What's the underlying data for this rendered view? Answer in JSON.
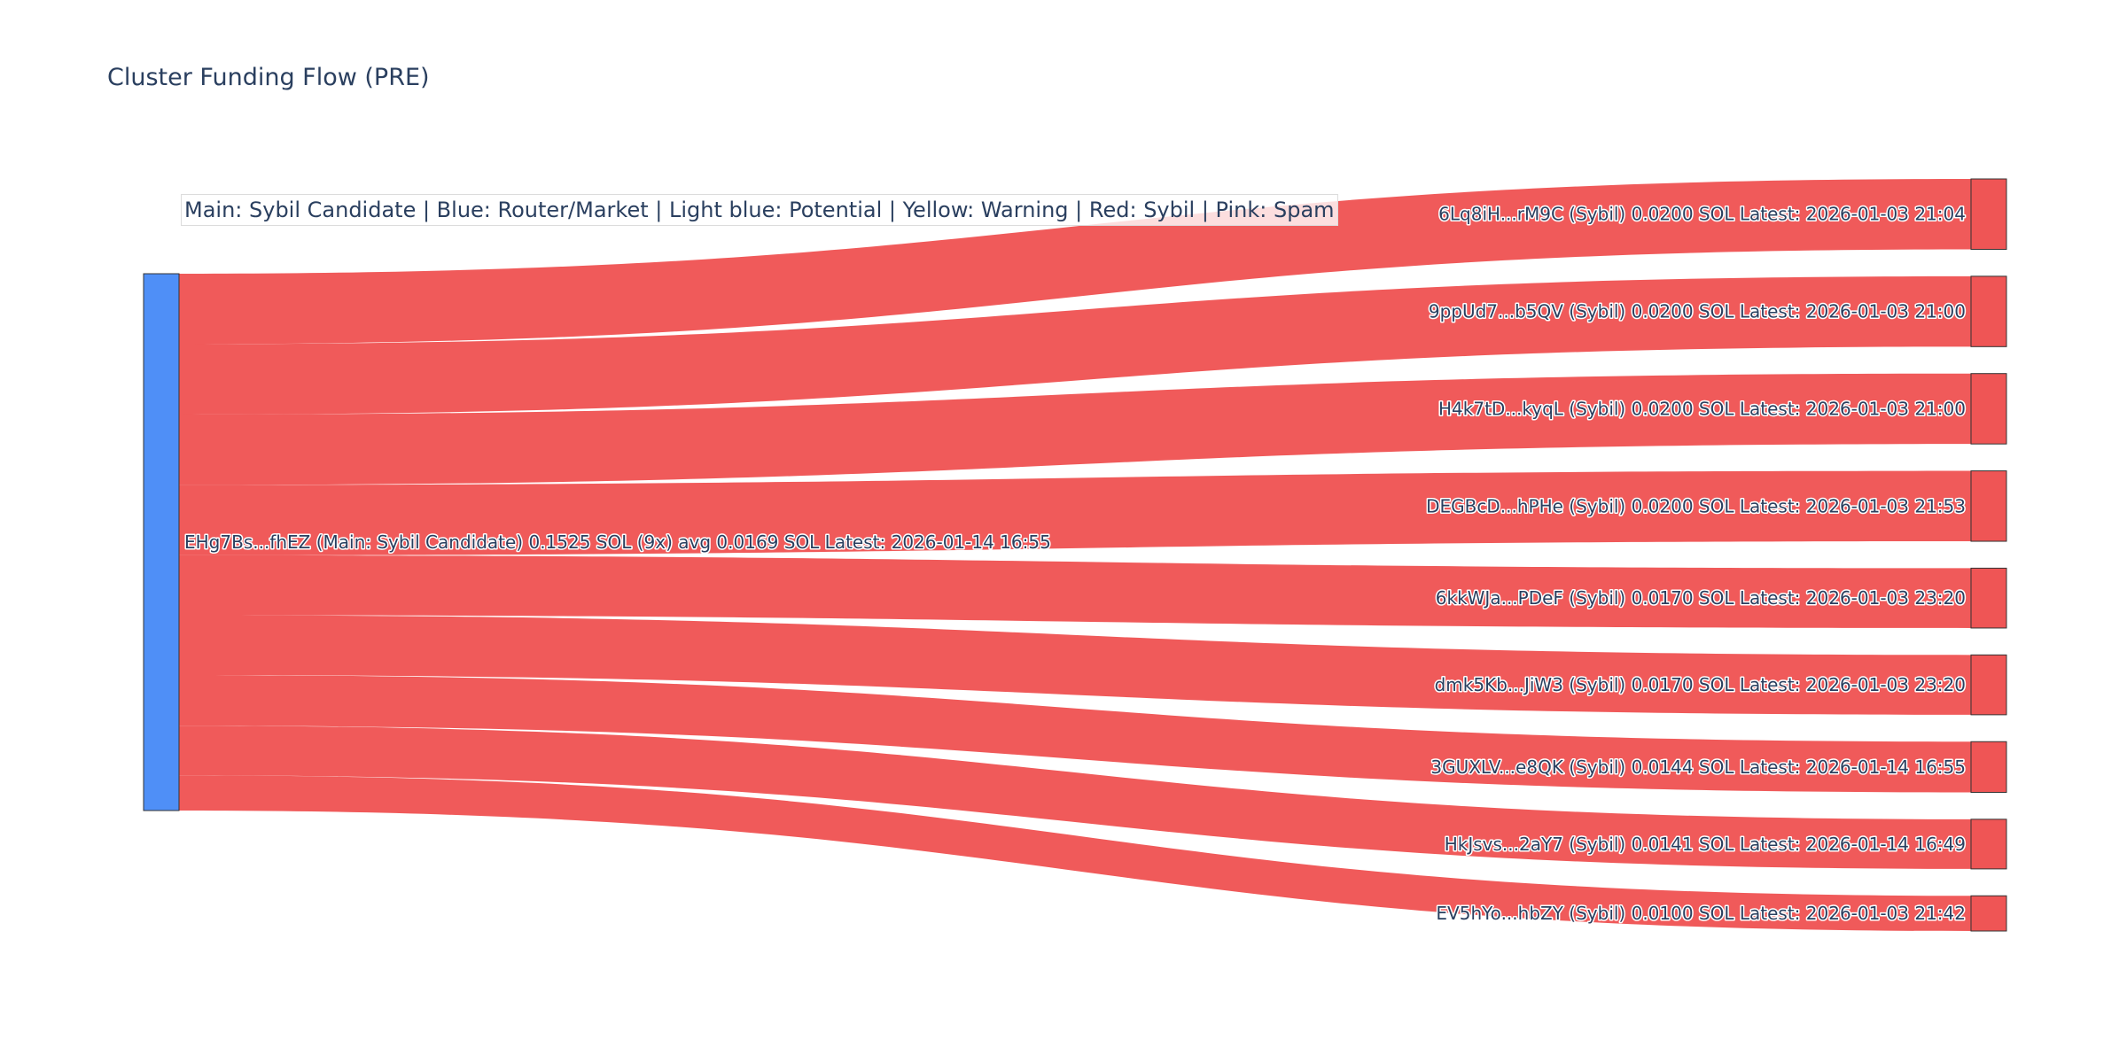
{
  "title": "Cluster Funding Flow (PRE)",
  "legend": "Main: Sybil Candidate  |  Blue: Router/Market | Light blue: Potential | Yellow: Warning | Red: Sybil | Pink: Spam",
  "colors": {
    "source": "#4f8ff7",
    "sybil": "#ef5555",
    "node_border": "#333333",
    "text": "#2a3f5f"
  },
  "source": {
    "label": "EHg7Bs...fhEZ (Main: Sybil Candidate) 0.1525 SOL (9x) avg 0.0169 SOL Latest: 2026-01-14 16:55",
    "total": 0.1525
  },
  "targets": [
    {
      "label": "6Lq8iH...rM9C (Sybil) 0.0200 SOL Latest: 2026-01-03 21:04",
      "value": 0.02
    },
    {
      "label": "9ppUd7...b5QV (Sybil) 0.0200 SOL Latest: 2026-01-03 21:00",
      "value": 0.02
    },
    {
      "label": "H4k7tD...kyqL (Sybil) 0.0200 SOL Latest: 2026-01-03 21:00",
      "value": 0.02
    },
    {
      "label": "DEGBcD...hPHe (Sybil) 0.0200 SOL Latest: 2026-01-03 21:53",
      "value": 0.02
    },
    {
      "label": "6kkWJa...PDeF (Sybil) 0.0170 SOL Latest: 2026-01-03 23:20",
      "value": 0.017
    },
    {
      "label": "dmk5Kb...JiW3 (Sybil) 0.0170 SOL Latest: 2026-01-03 23:20",
      "value": 0.017
    },
    {
      "label": "3GUXLV...e8QK (Sybil) 0.0144 SOL Latest: 2026-01-14 16:55",
      "value": 0.0144
    },
    {
      "label": "HkJsvs...2aY7 (Sybil) 0.0141 SOL Latest: 2026-01-14 16:49",
      "value": 0.0141
    },
    {
      "label": "EV5hYo...hbZY (Sybil) 0.0100 SOL Latest: 2026-01-03 21:42",
      "value": 0.01
    }
  ]
}
